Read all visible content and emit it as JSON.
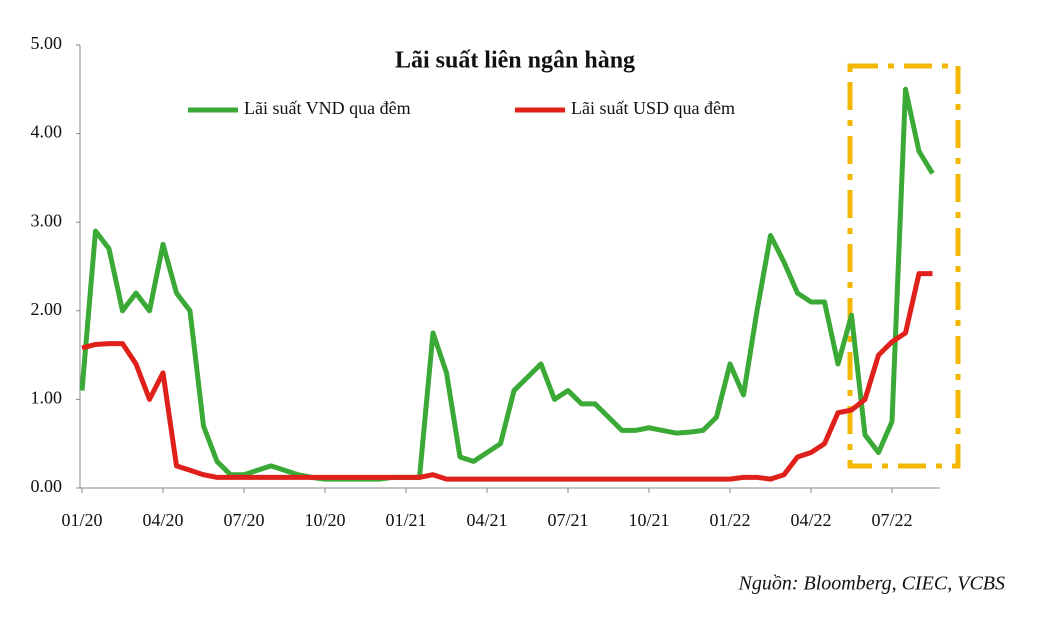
{
  "chart_data": {
    "type": "line",
    "title": "Lãi suất liên ngân hàng",
    "source": "Nguồn: Bloomberg, CIEC, VCBS",
    "categories": [
      "01/20",
      null,
      null,
      null,
      null,
      null,
      "04/20",
      null,
      null,
      null,
      null,
      null,
      "07/20",
      null,
      null,
      null,
      null,
      null,
      "10/20",
      null,
      null,
      null,
      null,
      null,
      "01/21",
      null,
      null,
      null,
      null,
      null,
      "04/21",
      null,
      null,
      null,
      null,
      null,
      "07/21",
      null,
      null,
      null,
      null,
      null,
      "10/21",
      null,
      null,
      null,
      null,
      null,
      "01/22",
      null,
      null,
      null,
      null,
      null,
      "04/22",
      null,
      null,
      null,
      null,
      null,
      "07/22",
      null,
      null,
      null
    ],
    "series": [
      {
        "name": "Lãi suất VND qua đêm",
        "color": "#3aa935",
        "values": [
          1.1,
          2.9,
          2.7,
          2.0,
          2.2,
          2.0,
          2.75,
          2.2,
          2.0,
          0.7,
          0.3,
          0.15,
          0.15,
          0.2,
          0.25,
          0.2,
          0.15,
          0.12,
          0.1,
          0.1,
          0.1,
          0.1,
          0.1,
          0.12,
          0.12,
          0.12,
          1.75,
          1.3,
          0.35,
          0.3,
          0.4,
          0.5,
          1.1,
          1.25,
          1.4,
          1.0,
          1.1,
          0.95,
          0.95,
          0.8,
          0.65,
          0.65,
          0.68,
          0.65,
          0.62,
          0.63,
          0.65,
          0.8,
          1.4,
          1.05,
          2.0,
          2.85,
          2.55,
          2.2,
          2.1,
          2.1,
          1.4,
          1.95,
          0.6,
          0.4,
          0.75,
          4.5,
          3.8,
          3.55
        ]
      },
      {
        "name": "Lãi suất USD qua đêm",
        "color": "#e0201b",
        "values": [
          1.58,
          1.62,
          1.63,
          1.63,
          1.4,
          1.0,
          1.3,
          0.25,
          0.2,
          0.15,
          0.12,
          0.12,
          0.12,
          0.12,
          0.12,
          0.12,
          0.12,
          0.12,
          0.12,
          0.12,
          0.12,
          0.12,
          0.12,
          0.12,
          0.12,
          0.12,
          0.15,
          0.1,
          0.1,
          0.1,
          0.1,
          0.1,
          0.1,
          0.1,
          0.1,
          0.1,
          0.1,
          0.1,
          0.1,
          0.1,
          0.1,
          0.1,
          0.1,
          0.1,
          0.1,
          0.1,
          0.1,
          0.1,
          0.1,
          0.12,
          0.12,
          0.1,
          0.15,
          0.35,
          0.4,
          0.5,
          0.85,
          0.88,
          1.0,
          1.5,
          1.65,
          1.75,
          2.42,
          2.42
        ]
      }
    ],
    "ylim": [
      0,
      5
    ],
    "yticks": [
      {
        "value": 0,
        "label": "0.00"
      },
      {
        "value": 1,
        "label": "1.00"
      },
      {
        "value": 2,
        "label": "2.00"
      },
      {
        "value": 3,
        "label": "3.00"
      },
      {
        "value": 4,
        "label": "4.00"
      },
      {
        "value": 5,
        "label": "5.00"
      }
    ]
  }
}
